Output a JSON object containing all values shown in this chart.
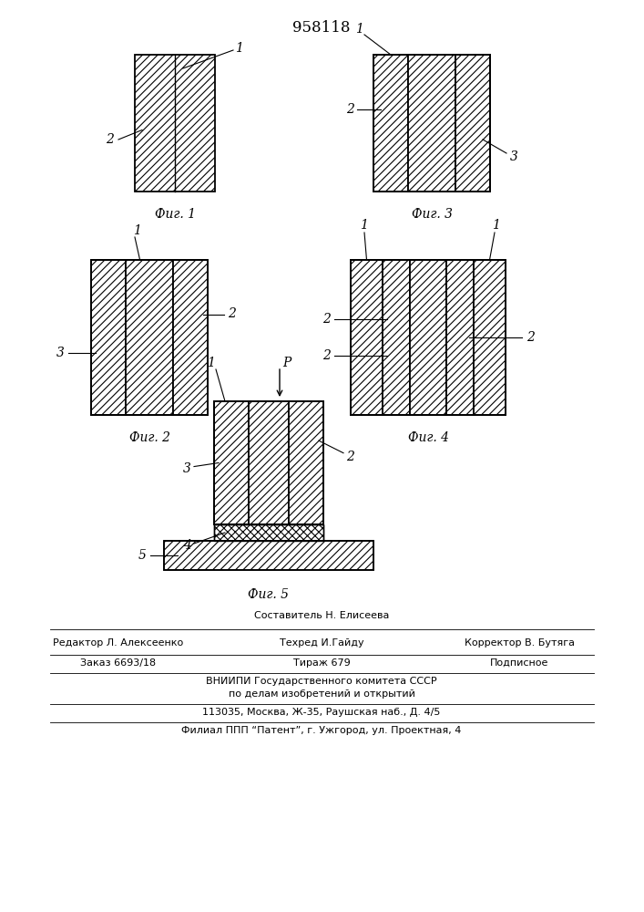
{
  "title": "958118",
  "bg_color": "#ffffff",
  "fig_labels": [
    "Фиг. 1",
    "Фиг. 2",
    "Фиг. 3",
    "Фиг. 4",
    "Фиг. 5"
  ],
  "footer_line1": "Составитель Н. Елисеева",
  "footer_line2a": "Редактор Л. Алексеенко",
  "footer_line2b": "Техред И.Гайду",
  "footer_line2c": "Корректор В. Бутяга",
  "footer_line3a": "Заказ 6693/18",
  "footer_line3b": "Тираж 679",
  "footer_line3c": "Подписное",
  "footer_line4": "ВНИИПИ Государственного комитета СССР",
  "footer_line5": "по делам изобретений и открытий",
  "footer_line6": "113035, Москва, Ж-35, Раушская наб., Д. 4/5",
  "footer_line7": "Филиал ППП “Патент”, г. Ужгород, ул. Проектная, 4"
}
